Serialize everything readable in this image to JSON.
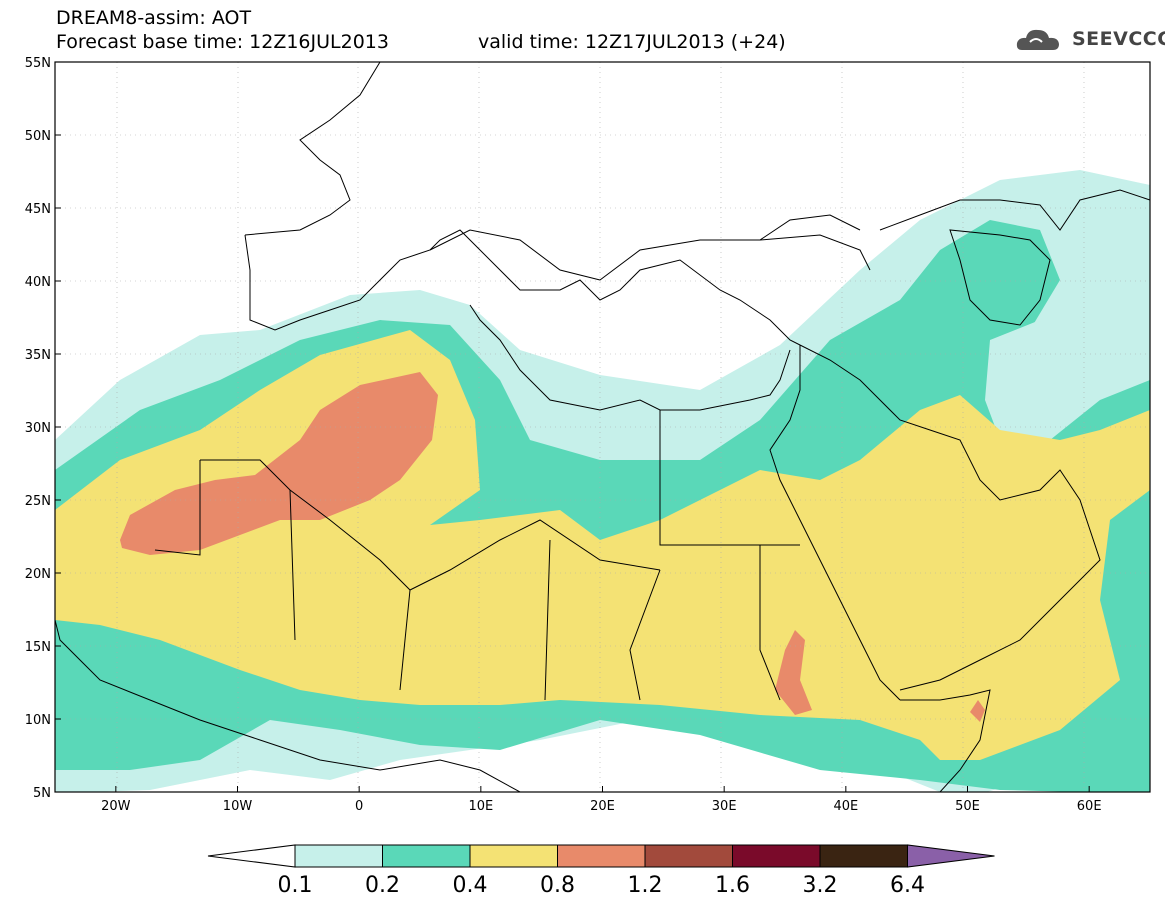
{
  "header": {
    "title_line1": "DREAM8-assim: AOT",
    "title_line2": "Forecast base time: 12Z16JUL2013",
    "valid_time": "valid time: 12Z17JUL2013 (+24)",
    "logo_text": "SEEVCCC"
  },
  "map": {
    "variable": "AOT",
    "lon_range": [
      -25,
      65
    ],
    "lat_range": [
      5,
      55
    ],
    "lat_labels": [
      "55N",
      "50N",
      "45N",
      "40N",
      "35N",
      "30N",
      "25N",
      "20N",
      "15N",
      "10N",
      "5N"
    ],
    "lat_values": [
      55,
      50,
      45,
      40,
      35,
      30,
      25,
      20,
      15,
      10,
      5
    ],
    "lon_labels": [
      "20W",
      "10W",
      "0",
      "10E",
      "20E",
      "30E",
      "40E",
      "50E",
      "60E"
    ],
    "lon_values": [
      -20,
      -10,
      0,
      10,
      20,
      30,
      40,
      50,
      60
    ],
    "contour_colors": {
      "0.1-0.2": "#c6f0ea",
      "0.2-0.4": "#5ad8b8",
      "0.4-0.8": "#f4e274",
      "0.8-1.2": "#e88a6a",
      "1.2-1.6": "#a24a3c"
    }
  },
  "colorbar": {
    "labels": [
      "0.1",
      "0.2",
      "0.4",
      "0.8",
      "1.2",
      "1.6",
      "3.2",
      "6.4"
    ],
    "colors": [
      "#ffffff",
      "#c6f0ea",
      "#5ad8b8",
      "#f4e274",
      "#e88a6a",
      "#a24a3c",
      "#7a0a2a",
      "#3a2412",
      "#8a60a8"
    ]
  }
}
